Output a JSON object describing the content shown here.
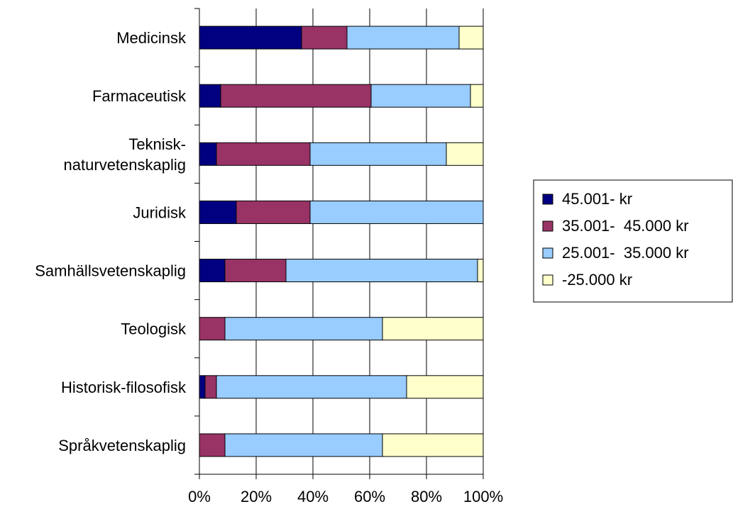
{
  "chart_data": {
    "type": "bar",
    "orientation": "horizontal",
    "stacked": true,
    "normalized": true,
    "categories": [
      [
        "Medicinsk"
      ],
      [
        "Farmaceutisk"
      ],
      [
        "Teknisk-",
        "naturvetenskaplig"
      ],
      [
        "Juridisk"
      ],
      [
        "Samhällsvetenskaplig"
      ],
      [
        "Teologisk"
      ],
      [
        "Historisk-filosofisk"
      ],
      [
        "Språkvetenskaplig"
      ]
    ],
    "series": [
      {
        "name": "45.001- kr",
        "color": "#000080",
        "values": [
          36,
          7.5,
          6,
          13,
          9,
          0,
          2,
          0
        ]
      },
      {
        "name": "35.001-  45.000 kr",
        "color": "#993366",
        "values": [
          16,
          53,
          33,
          26,
          21.5,
          9,
          4,
          9
        ]
      },
      {
        "name": "25.001-  35.000 kr",
        "color": "#99CCFF",
        "values": [
          39.5,
          35,
          48,
          61,
          67.5,
          55.5,
          67,
          55.5
        ]
      },
      {
        "name": "-25.000 kr",
        "color": "#FFFFCC",
        "values": [
          8.5,
          4.5,
          13,
          0,
          2,
          35.5,
          27,
          35.5
        ]
      }
    ],
    "xlim": [
      0,
      100
    ],
    "x_ticks": [
      "0%",
      "20%",
      "40%",
      "60%",
      "80%",
      "100%"
    ],
    "grid": true,
    "legend_position": "right"
  }
}
